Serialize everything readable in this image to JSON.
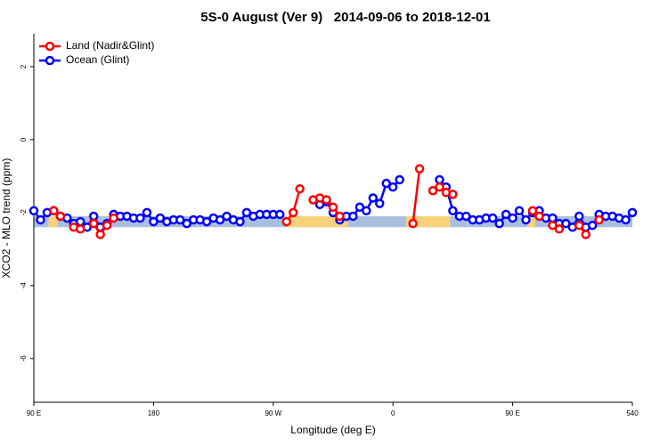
{
  "chart_data": {
    "type": "line",
    "title": "5S-0 August (Ver 9)   2014-09-06 to 2018-12-01",
    "xlabel": "Longitude (deg E)",
    "ylabel": "XCO2 - MLO trend (ppm)",
    "x": [
      90,
      95,
      100,
      105,
      110,
      115,
      120,
      125,
      130,
      135,
      140,
      145,
      150,
      155,
      160,
      165,
      170,
      175,
      180,
      185,
      190,
      195,
      200,
      205,
      210,
      215,
      220,
      225,
      230,
      235,
      240,
      245,
      250,
      255,
      260,
      265,
      270,
      275,
      280,
      285,
      290,
      295,
      300,
      305,
      310,
      315,
      320,
      325,
      330,
      335,
      340,
      345,
      350,
      355,
      360,
      365,
      370,
      375,
      380,
      385,
      390,
      395,
      400,
      405,
      410,
      415,
      420,
      425,
      430,
      435,
      440,
      445,
      450,
      455,
      460,
      465,
      470,
      475,
      480,
      485,
      490,
      495,
      500,
      505,
      510,
      515,
      520,
      525,
      530,
      535,
      540
    ],
    "xlim": [
      90,
      540
    ],
    "xticks": [
      {
        "value": 90,
        "label": "90 E"
      },
      180,
      {
        "value": 270,
        "label": "90 W"
      },
      {
        "value": 360,
        "label": "0"
      },
      {
        "value": 450,
        "label": "90 E"
      },
      540
    ],
    "ylim": [
      -7.2,
      2.9
    ],
    "yticks": [
      2,
      0,
      -2,
      -4,
      -6
    ],
    "legend": "top-left",
    "bands": [
      {
        "xlim": [
          90,
          540
        ],
        "ylim": [
          -2.4,
          -2.1
        ],
        "color": "#a9bfe0"
      },
      {
        "xlim": [
          101,
          108
        ],
        "ylim": [
          -2.4,
          -2.1
        ],
        "color": "#f8d27a"
      },
      {
        "xlim": [
          280,
          326
        ],
        "ylim": [
          -2.4,
          -2.1
        ],
        "color": "#f8d27a"
      },
      {
        "xlim": [
          370,
          403
        ],
        "ylim": [
          -2.4,
          -2.1
        ],
        "color": "#f8d27a"
      },
      {
        "xlim": [
          461,
          467
        ],
        "ylim": [
          -2.4,
          -2.1
        ],
        "color": "#f8d27a"
      }
    ],
    "series": [
      {
        "name": "Ocean (Glint)",
        "color": "#0000ff",
        "values": [
          -1.95,
          -2.2,
          -2.0,
          -1.95,
          -2.1,
          -2.15,
          -2.3,
          -2.25,
          -2.4,
          -2.1,
          -2.4,
          -2.3,
          -2.05,
          -2.1,
          -2.1,
          -2.15,
          -2.15,
          -2.0,
          -2.25,
          -2.15,
          -2.25,
          -2.2,
          -2.2,
          -2.3,
          -2.2,
          -2.2,
          -2.25,
          -2.15,
          -2.2,
          -2.1,
          -2.2,
          -2.25,
          -2.0,
          -2.1,
          -2.05,
          -2.05,
          -2.05,
          -2.05,
          null,
          null,
          null,
          null,
          null,
          -1.78,
          -1.7,
          -2.0,
          -2.2,
          -2.1,
          -2.1,
          -1.85,
          -1.95,
          -1.6,
          -1.75,
          -1.2,
          -1.3,
          -1.1,
          null,
          null,
          null,
          null,
          null,
          -1.1,
          -1.3,
          -1.95,
          -2.1,
          -2.1,
          -2.2,
          -2.2,
          -2.15,
          -2.15,
          -2.3,
          -2.05,
          -2.15,
          -1.95,
          -2.2,
          -2.0,
          -1.95,
          -2.15,
          -2.15,
          -2.3,
          -2.3,
          -2.4,
          -2.1,
          -2.4,
          -2.35,
          -2.05,
          -2.1,
          -2.1,
          -2.15,
          -2.2,
          -2.0
        ]
      },
      {
        "name": "Land (Nadir&Glint)",
        "color": "#ff0000",
        "values": [
          null,
          null,
          null,
          -1.95,
          -2.1,
          null,
          -2.4,
          -2.45,
          null,
          -2.3,
          -2.6,
          -2.35,
          -2.15,
          null,
          null,
          null,
          null,
          null,
          null,
          null,
          null,
          null,
          null,
          null,
          null,
          null,
          null,
          null,
          null,
          null,
          null,
          null,
          null,
          null,
          null,
          null,
          null,
          null,
          -2.25,
          -2.0,
          -1.35,
          null,
          -1.65,
          -1.6,
          -1.65,
          -1.85,
          -2.1,
          null,
          null,
          null,
          null,
          null,
          null,
          null,
          null,
          null,
          null,
          -2.3,
          -0.8,
          null,
          -1.4,
          -1.3,
          -1.45,
          -1.5,
          null,
          null,
          null,
          null,
          null,
          null,
          null,
          null,
          null,
          null,
          null,
          -1.95,
          -2.1,
          null,
          -2.35,
          -2.45,
          null,
          null,
          -2.35,
          -2.6,
          null,
          -2.2,
          null,
          null,
          null,
          null,
          null
        ]
      }
    ]
  }
}
